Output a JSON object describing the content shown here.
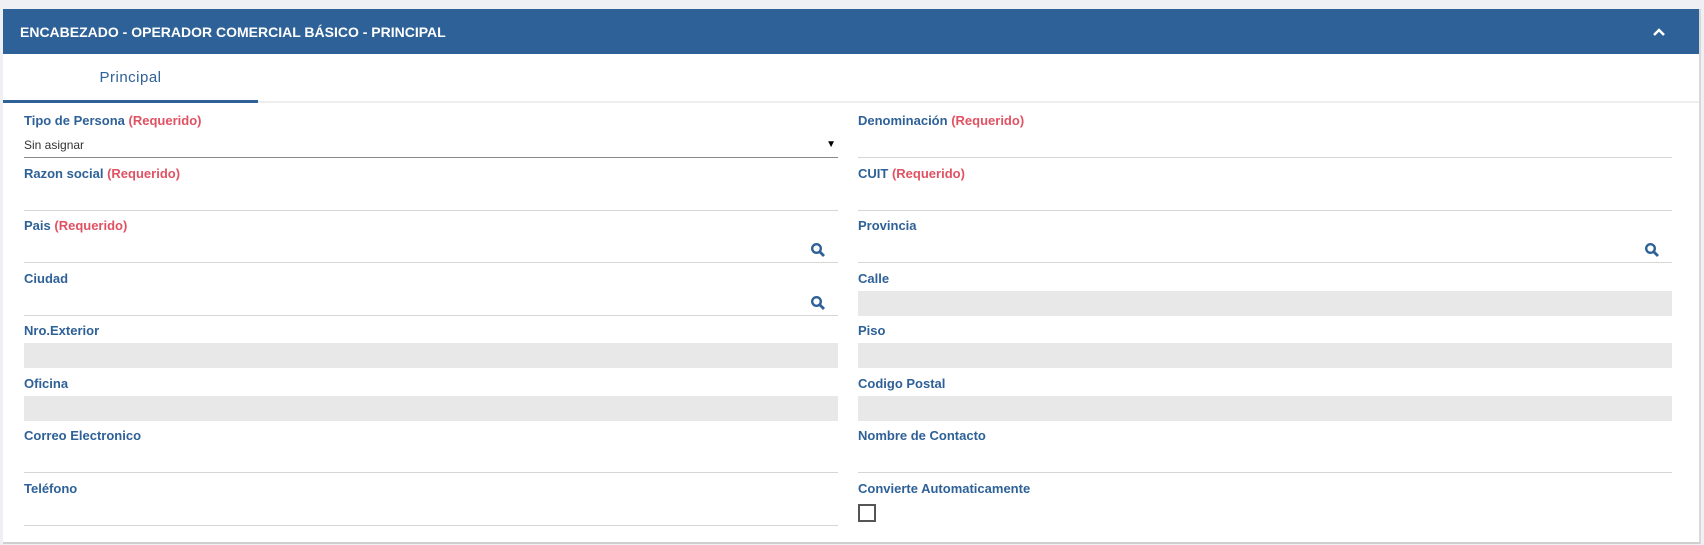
{
  "header": {
    "title": "ENCABEZADO - OPERADOR COMERCIAL BÁSICO - PRINCIPAL",
    "collapse_icon": "chevron-up-icon"
  },
  "tabs": [
    {
      "label": "Principal",
      "active": true
    }
  ],
  "required_text": "(Requerido)",
  "colors": {
    "header": "#2e6197",
    "label": "#2e6197",
    "required": "#e05263",
    "disabled_field": "#e8e8e8"
  },
  "fields": {
    "tipo_persona": {
      "label": "Tipo de Persona",
      "value": "Sin asignar"
    },
    "denominacion": {
      "label": "Denominación"
    },
    "razon_social": {
      "label": "Razon social"
    },
    "cuit": {
      "label": "CUIT"
    },
    "pais": {
      "label": "Pais"
    },
    "provincia": {
      "label": "Provincia"
    },
    "ciudad": {
      "label": "Ciudad"
    },
    "calle": {
      "label": "Calle"
    },
    "nro_exterior": {
      "label": "Nro.Exterior"
    },
    "piso": {
      "label": "Piso"
    },
    "oficina": {
      "label": "Oficina"
    },
    "codigo_postal": {
      "label": "Codigo Postal"
    },
    "correo": {
      "label": "Correo Electronico"
    },
    "contacto": {
      "label": "Nombre de Contacto"
    },
    "telefono": {
      "label": "Teléfono"
    },
    "convierte": {
      "label": "Convierte Automaticamente",
      "checked": false
    }
  }
}
